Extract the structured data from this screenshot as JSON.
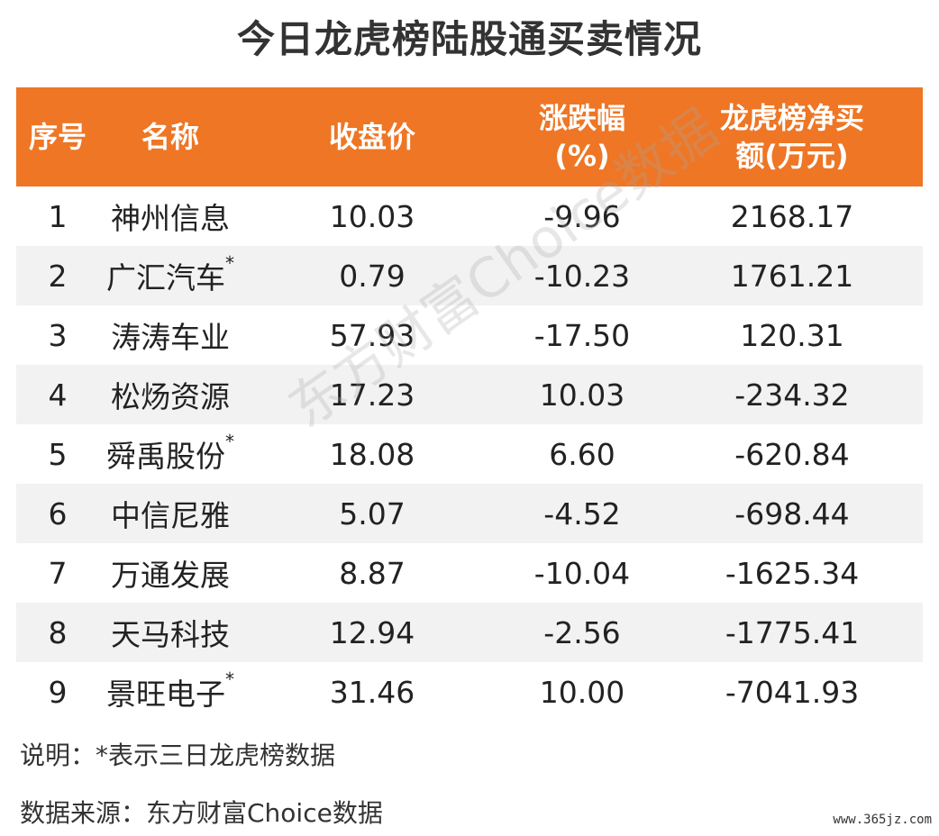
{
  "title": "今日龙虎榜陆股通买卖情况",
  "table": {
    "headers": {
      "index": "序号",
      "name": "名称",
      "close": "收盘价",
      "change_line1": "涨跌幅",
      "change_line2": "(%)",
      "net_line1": "龙虎榜净买",
      "net_line2": "额(万元)"
    },
    "rows": [
      {
        "index": "1",
        "name": "神州信息",
        "star": "",
        "close": "10.03",
        "change": "-9.96",
        "net": "2168.17"
      },
      {
        "index": "2",
        "name": "广汇汽车",
        "star": "*",
        "close": "0.79",
        "change": "-10.23",
        "net": "1761.21"
      },
      {
        "index": "3",
        "name": "涛涛车业",
        "star": "",
        "close": "57.93",
        "change": "-17.50",
        "net": "120.31"
      },
      {
        "index": "4",
        "name": "松炀资源",
        "star": "",
        "close": "17.23",
        "change": "10.03",
        "net": "-234.32"
      },
      {
        "index": "5",
        "name": "舜禹股份",
        "star": "*",
        "close": "18.08",
        "change": "6.60",
        "net": "-620.84"
      },
      {
        "index": "6",
        "name": "中信尼雅",
        "star": "",
        "close": "5.07",
        "change": "-4.52",
        "net": "-698.44"
      },
      {
        "index": "7",
        "name": "万通发展",
        "star": "",
        "close": "8.87",
        "change": "-10.04",
        "net": "-1625.34"
      },
      {
        "index": "8",
        "name": "天马科技",
        "star": "",
        "close": "12.94",
        "change": "-2.56",
        "net": "-1775.41"
      },
      {
        "index": "9",
        "name": "景旺电子",
        "star": "*",
        "close": "31.46",
        "change": "10.00",
        "net": "-7041.93"
      }
    ]
  },
  "notes": {
    "explain": "说明：*表示三日龙虎榜数据",
    "source": "数据来源：东方财富Choice数据"
  },
  "watermark": "东方财富Choice数据",
  "site": "www.365jz.com"
}
